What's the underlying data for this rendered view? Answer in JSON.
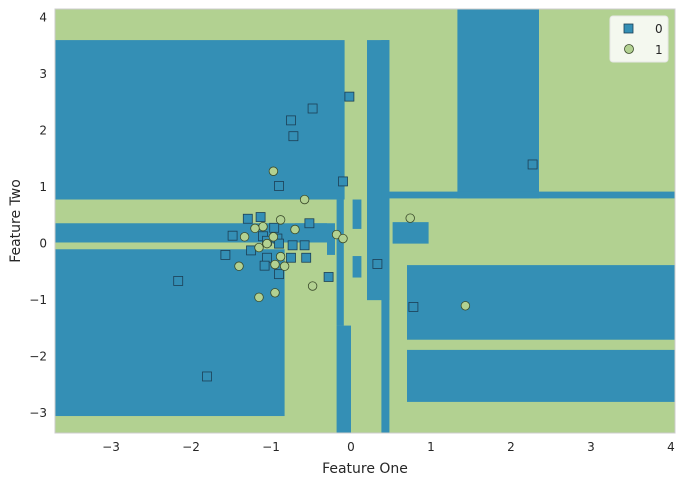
{
  "chart_data": {
    "type": "scatter",
    "title": "",
    "xlabel": "Feature One",
    "ylabel": "Feature Two",
    "xlim": [
      -3.7,
      4.05
    ],
    "ylim": [
      -3.35,
      4.15
    ],
    "xticks": [
      -3,
      -2,
      -1,
      0,
      1,
      2,
      3,
      4
    ],
    "yticks": [
      -3,
      -2,
      -1,
      0,
      1,
      2,
      3,
      4
    ],
    "grid": false,
    "legend_position": "top-right",
    "colors": {
      "class_0": "#348fb5",
      "class_1": "#b2d191",
      "edge": "#1c3f55",
      "frame": "#cccccc"
    },
    "decision_regions": [
      {
        "class": 0,
        "x": [
          -3.7,
          -0.08
        ],
        "y": [
          0.78,
          3.6
        ]
      },
      {
        "class": 0,
        "x": [
          -3.7,
          -0.3
        ],
        "y": [
          0.02,
          0.36
        ]
      },
      {
        "class": 0,
        "x": [
          -3.7,
          -0.83
        ],
        "y": [
          -3.05,
          -0.1
        ]
      },
      {
        "class": 0,
        "x": [
          1.33,
          2.35
        ],
        "y": [
          0.8,
          4.15
        ]
      },
      {
        "class": 0,
        "x": [
          0.2,
          4.05
        ],
        "y": [
          0.8,
          0.92
        ]
      },
      {
        "class": 0,
        "x": [
          0.2,
          0.48
        ],
        "y": [
          -1.0,
          3.6
        ]
      },
      {
        "class": 0,
        "x": [
          0.38,
          0.48
        ],
        "y": [
          -3.35,
          3.6
        ]
      },
      {
        "class": 0,
        "x": [
          0.7,
          4.05
        ],
        "y": [
          -1.7,
          -0.38
        ]
      },
      {
        "class": 0,
        "x": [
          0.7,
          4.05
        ],
        "y": [
          -2.8,
          -1.88
        ]
      },
      {
        "class": 0,
        "x": [
          0.52,
          0.97
        ],
        "y": [
          0.0,
          0.38
        ]
      },
      {
        "class": 0,
        "x": [
          -0.18,
          0.0
        ],
        "y": [
          -3.35,
          -1.45
        ]
      },
      {
        "class": 0,
        "x": [
          -0.18,
          -0.09
        ],
        "y": [
          -1.45,
          0.78
        ]
      },
      {
        "class": 0,
        "x": [
          0.02,
          0.13
        ],
        "y": [
          0.26,
          0.78
        ]
      },
      {
        "class": 0,
        "x": [
          0.02,
          0.13
        ],
        "y": [
          -0.6,
          -0.22
        ]
      },
      {
        "class": 0,
        "x": [
          0.2,
          0.38
        ],
        "y": [
          -0.22,
          0.78
        ]
      },
      {
        "class": 0,
        "x": [
          -0.3,
          -0.2
        ],
        "y": [
          -0.2,
          0.3
        ]
      },
      {
        "class": 0,
        "x": [
          -0.7,
          -0.2
        ],
        "y": [
          0.27,
          0.36
        ]
      }
    ],
    "series": [
      {
        "name": "0",
        "marker": "square",
        "points": [
          [
            -0.48,
            2.39
          ],
          [
            -0.02,
            2.6
          ],
          [
            -0.75,
            2.18
          ],
          [
            -0.72,
            1.9
          ],
          [
            -0.1,
            1.1
          ],
          [
            -0.9,
            1.02
          ],
          [
            2.27,
            1.4
          ],
          [
            -1.29,
            0.44
          ],
          [
            -1.13,
            0.47
          ],
          [
            -0.52,
            0.36
          ],
          [
            -1.48,
            0.14
          ],
          [
            -0.96,
            0.28
          ],
          [
            -1.1,
            0.13
          ],
          [
            -1.05,
            0.05
          ],
          [
            -0.92,
            0.09
          ],
          [
            -0.9,
            0.0
          ],
          [
            -0.73,
            -0.03
          ],
          [
            -0.58,
            -0.03
          ],
          [
            -1.25,
            -0.12
          ],
          [
            -1.05,
            -0.25
          ],
          [
            -0.75,
            -0.25
          ],
          [
            -0.56,
            -0.25
          ],
          [
            -1.57,
            -0.2
          ],
          [
            -1.08,
            -0.39
          ],
          [
            -0.9,
            -0.54
          ],
          [
            -0.28,
            -0.59
          ],
          [
            0.33,
            -0.36
          ],
          [
            0.78,
            -1.12
          ],
          [
            -2.16,
            -0.66
          ],
          [
            -1.8,
            -2.35
          ]
        ]
      },
      {
        "name": "1",
        "marker": "circle",
        "points": [
          [
            -0.97,
            1.28
          ],
          [
            -0.58,
            0.78
          ],
          [
            0.74,
            0.45
          ],
          [
            -0.88,
            0.42
          ],
          [
            -1.1,
            0.3
          ],
          [
            -1.2,
            0.27
          ],
          [
            -0.7,
            0.25
          ],
          [
            -1.33,
            0.12
          ],
          [
            -0.97,
            0.12
          ],
          [
            -0.18,
            0.16
          ],
          [
            -0.1,
            0.09
          ],
          [
            -1.05,
            0.0
          ],
          [
            -1.15,
            -0.07
          ],
          [
            -0.88,
            -0.23
          ],
          [
            -0.95,
            -0.37
          ],
          [
            -0.83,
            -0.4
          ],
          [
            -1.4,
            -0.4
          ],
          [
            -0.48,
            -0.75
          ],
          [
            -0.95,
            -0.87
          ],
          [
            -1.15,
            -0.95
          ],
          [
            1.43,
            -1.1
          ]
        ]
      }
    ]
  }
}
